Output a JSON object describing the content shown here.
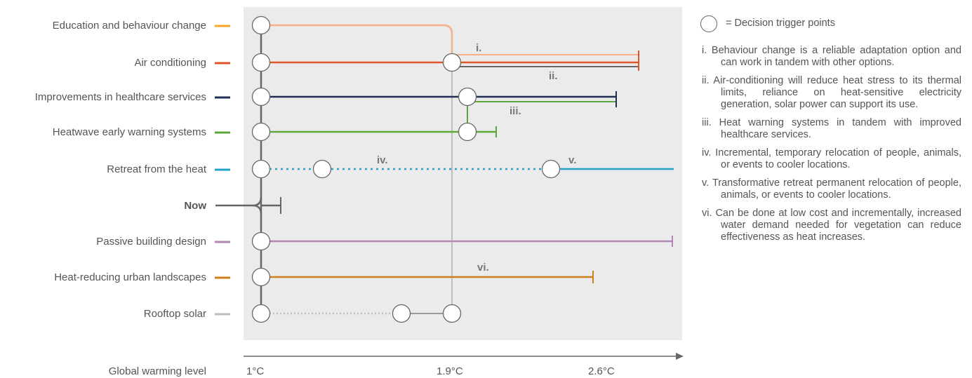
{
  "rows": [
    {
      "label": "Education and behaviour change",
      "color": "#f5a623"
    },
    {
      "label": "Air conditioning",
      "color": "#e0552a"
    },
    {
      "label": "Improvements in healthcare services",
      "color": "#1f2f55"
    },
    {
      "label": "Heatwave early warning systems",
      "color": "#5ea83b"
    },
    {
      "label": "Retreat from the heat",
      "color": "#22a3c6"
    },
    {
      "label": "Now",
      "color": "#666666"
    },
    {
      "label": "Passive building design",
      "color": "#b585b3"
    },
    {
      "label": "Heat-reducing urban landscapes",
      "color": "#d07f1f"
    },
    {
      "label": "Rooftop solar",
      "color": "#bdbdbd"
    }
  ],
  "axis": {
    "label": "Global warming level",
    "ticks": [
      "1°C",
      "1.9°C",
      "2.6°C"
    ]
  },
  "annotations": [
    "i.",
    "ii.",
    "iii.",
    "iv.",
    "v.",
    "vi."
  ],
  "legend": {
    "key_text": "= Decision trigger points",
    "notes": [
      "i. Behaviour change is a reliable adaptation option and can work in tandem with other options.",
      "ii. Air-conditioning will reduce heat stress to its thermal limits, reliance on heat-sensitive electricity generation, solar power can support its use.",
      "iii. Heat warning systems in tandem with improved healthcare services.",
      "iv. Incremental, temporary relocation of people, animals, or events to cooler locations.",
      "v. Transformative retreat permanent relocation of people, animals, or events to cooler locations.",
      "vi. Can be done at low cost and incrementally, increased water demand needed for vegetation can reduce effectiveness as heat increases."
    ]
  }
}
